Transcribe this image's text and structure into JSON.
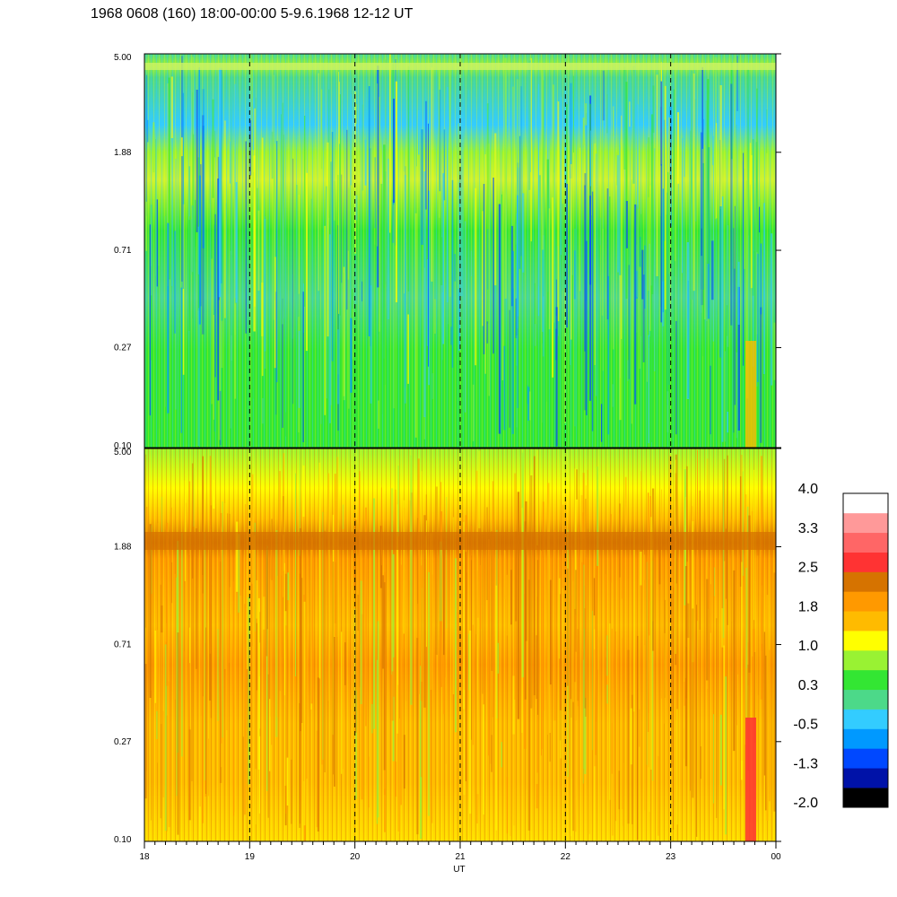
{
  "title": "1968 0608 (160) 18:00-00:00 5-9.6.1968  12-12 UT",
  "chart_data": {
    "type": "heatmap",
    "title": "1968 0608 (160) 18:00-00:00 5-9.6.1968  12-12 UT",
    "xlabel": "UT",
    "ylabel": "",
    "x_ticks": [
      "18",
      "19",
      "20",
      "21",
      "22",
      "23",
      "00"
    ],
    "x_range": [
      18,
      24
    ],
    "y_scale": "log",
    "panels": [
      {
        "name": "",
        "y_ticks": [
          "5.00",
          "1.88",
          "0.71",
          "0.27",
          "0.10"
        ],
        "y_range": [
          0.1,
          5.0
        ]
      },
      {
        "name": "",
        "y_ticks": [
          "5.00",
          "1.88",
          "0.71",
          "0.27",
          "0.10"
        ],
        "y_range": [
          0.1,
          5.0
        ]
      }
    ],
    "colorbar": {
      "labels": [
        "4.0",
        "3.3",
        "2.5",
        "1.8",
        "1.0",
        "0.3",
        "-0.5",
        "-1.3",
        "-2.0"
      ],
      "range": [
        -2.0,
        4.0
      ],
      "colors": [
        "#000000",
        "#0012a8",
        "#0048ff",
        "#0099ff",
        "#33ccff",
        "#4cd989",
        "#33e633",
        "#99f233",
        "#ffff00",
        "#ffbb00",
        "#ff9900",
        "#d67300",
        "#ff3333",
        "#ff6666",
        "#ff9999",
        "#ffffff"
      ]
    }
  }
}
